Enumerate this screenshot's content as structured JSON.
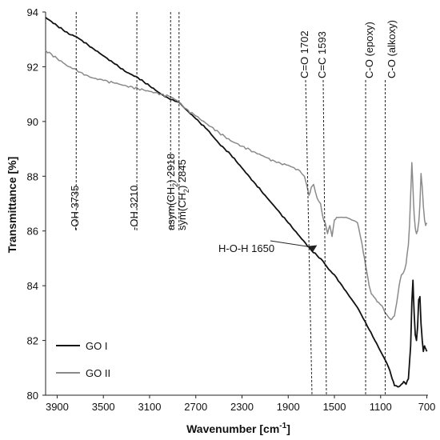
{
  "chart_data": {
    "type": "line",
    "xlabel": "Wavenumber [cm",
    "xlabel_sup": "-1",
    "xlabel_end": "]",
    "ylabel": "Transmittance [%]",
    "xlim": [
      4000,
      690
    ],
    "ylim": [
      80,
      94
    ],
    "x_reversed": true,
    "x_ticks": [
      3900,
      3500,
      3100,
      2700,
      2300,
      1900,
      1500,
      1100,
      700
    ],
    "y_ticks": [
      80,
      82,
      84,
      86,
      88,
      90,
      92,
      94
    ],
    "legend": {
      "position": "bottom-left"
    },
    "series": [
      {
        "name": "GO I",
        "color": "#111111",
        "x": [
          4000,
          3900,
          3800,
          3735,
          3700,
          3600,
          3500,
          3400,
          3300,
          3200,
          3100,
          3000,
          2918,
          2845,
          2800,
          2700,
          2600,
          2500,
          2400,
          2300,
          2200,
          2100,
          2000,
          1900,
          1800,
          1700,
          1650,
          1600,
          1550,
          1500,
          1450,
          1400,
          1350,
          1300,
          1250,
          1200,
          1150,
          1100,
          1050,
          1020,
          1000,
          980,
          950,
          920,
          900,
          880,
          860,
          840,
          830,
          820,
          810,
          800,
          790,
          780,
          770,
          760,
          750,
          740,
          730,
          720,
          710,
          700
        ],
        "y": [
          93.8,
          93.5,
          93.2,
          93.1,
          93.0,
          92.7,
          92.4,
          92.1,
          91.8,
          91.6,
          91.3,
          91.0,
          90.8,
          90.7,
          90.5,
          90.1,
          89.7,
          89.2,
          88.8,
          88.3,
          87.8,
          87.3,
          86.8,
          86.3,
          85.8,
          85.3,
          85.1,
          84.9,
          84.6,
          84.4,
          84.1,
          83.8,
          83.5,
          83.2,
          82.8,
          82.4,
          82.0,
          81.6,
          81.2,
          80.9,
          80.6,
          80.35,
          80.3,
          80.4,
          80.5,
          80.4,
          80.6,
          81.8,
          83.4,
          84.2,
          83.0,
          82.2,
          82.0,
          82.5,
          83.5,
          83.6,
          82.6,
          82.0,
          81.6,
          81.8,
          81.7,
          81.6
        ]
      },
      {
        "name": "GO II",
        "color": "#8a8a8a",
        "x": [
          4000,
          3900,
          3800,
          3735,
          3700,
          3650,
          3600,
          3500,
          3400,
          3300,
          3200,
          3100,
          3000,
          2918,
          2845,
          2800,
          2700,
          2600,
          2500,
          2400,
          2300,
          2200,
          2100,
          2000,
          1900,
          1800,
          1760,
          1720,
          1700,
          1680,
          1650,
          1620,
          1600,
          1580,
          1560,
          1540,
          1520,
          1500,
          1480,
          1450,
          1400,
          1350,
          1300,
          1280,
          1260,
          1240,
          1220,
          1200,
          1180,
          1160,
          1140,
          1120,
          1100,
          1080,
          1060,
          1040,
          1020,
          1000,
          980,
          960,
          940,
          920,
          900,
          880,
          860,
          850,
          840,
          830,
          820,
          810,
          800,
          790,
          780,
          770,
          760,
          750,
          740,
          730,
          720,
          710,
          700
        ],
        "y": [
          92.6,
          92.3,
          92.0,
          91.9,
          91.8,
          91.7,
          91.6,
          91.5,
          91.4,
          91.3,
          91.2,
          91.1,
          91.0,
          90.9,
          90.7,
          90.5,
          90.2,
          89.9,
          89.6,
          89.3,
          89.1,
          88.9,
          88.7,
          88.5,
          88.4,
          88.2,
          88.0,
          87.3,
          87.6,
          87.7,
          87.2,
          87.0,
          86.5,
          86.3,
          85.9,
          86.2,
          85.8,
          86.4,
          86.5,
          86.5,
          86.5,
          86.4,
          86.3,
          85.9,
          85.5,
          85.0,
          84.5,
          84.0,
          83.7,
          83.6,
          83.5,
          83.4,
          83.3,
          83.2,
          83.0,
          82.9,
          82.8,
          82.8,
          82.9,
          83.4,
          84.0,
          84.4,
          84.5,
          84.8,
          85.5,
          86.2,
          87.3,
          88.5,
          87.6,
          86.6,
          86.1,
          85.9,
          86.0,
          86.3,
          87.0,
          88.1,
          87.6,
          86.9,
          86.4,
          86.2,
          86.3
        ]
      }
    ],
    "annotations": {
      "oh3735": {
        "label": "-OH 3735",
        "x": 3735
      },
      "oh3210": {
        "label": "-OH 3210",
        "x": 3210
      },
      "asym_prefix": "asym(CH",
      "asym_sub": "2",
      "asym_suffix": ") 2918",
      "asym_x": 2918,
      "sym_prefix": "sym(CH",
      "sym_sub": "2",
      "sym_suffix": ") 2845",
      "sym_x": 2845,
      "co1702": {
        "label": "C=O 1702",
        "x": 1702
      },
      "cc1593": {
        "label": "C=C 1593",
        "x": 1593
      },
      "epoxy": {
        "label": "C-O (epoxy)",
        "x": 1230
      },
      "alkoxy": {
        "label": "C-O (alkoxy)",
        "x": 1060
      },
      "hoh": {
        "label": "H-O-H 1650",
        "x": 1650,
        "y": 85.1
      }
    }
  }
}
